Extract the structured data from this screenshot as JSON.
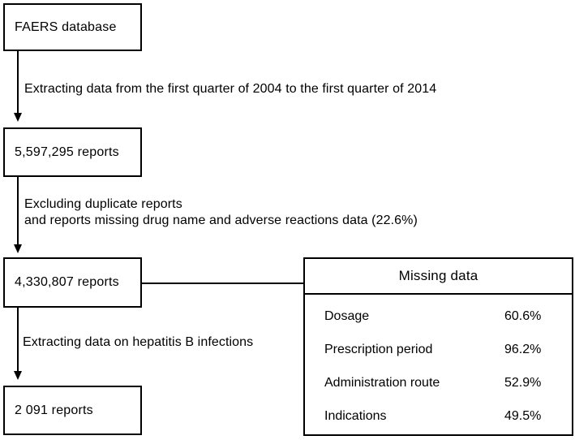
{
  "flow": {
    "nodes": [
      {
        "label": "FAERS database"
      },
      {
        "label": "5,597,295 reports"
      },
      {
        "label": "4,330,807 reports"
      },
      {
        "label": "2 091 reports"
      }
    ],
    "steps": [
      {
        "lines": [
          "Extracting data from the first quarter of 2004 to the first quarter of 2014"
        ]
      },
      {
        "lines": [
          "Excluding duplicate reports",
          "and reports missing drug name and adverse reactions data (22.6%)"
        ]
      },
      {
        "lines": [
          "Extracting data on hepatitis B infections"
        ]
      }
    ]
  },
  "missing_data": {
    "title": "Missing data",
    "rows": [
      {
        "label": "Dosage",
        "value": "60.6%"
      },
      {
        "label": "Prescription period",
        "value": "96.2%"
      },
      {
        "label": "Administration route",
        "value": "52.9%"
      },
      {
        "label": "Indications",
        "value": "49.5%"
      }
    ]
  },
  "colors": {
    "line": "#000000",
    "background": "#ffffff"
  }
}
